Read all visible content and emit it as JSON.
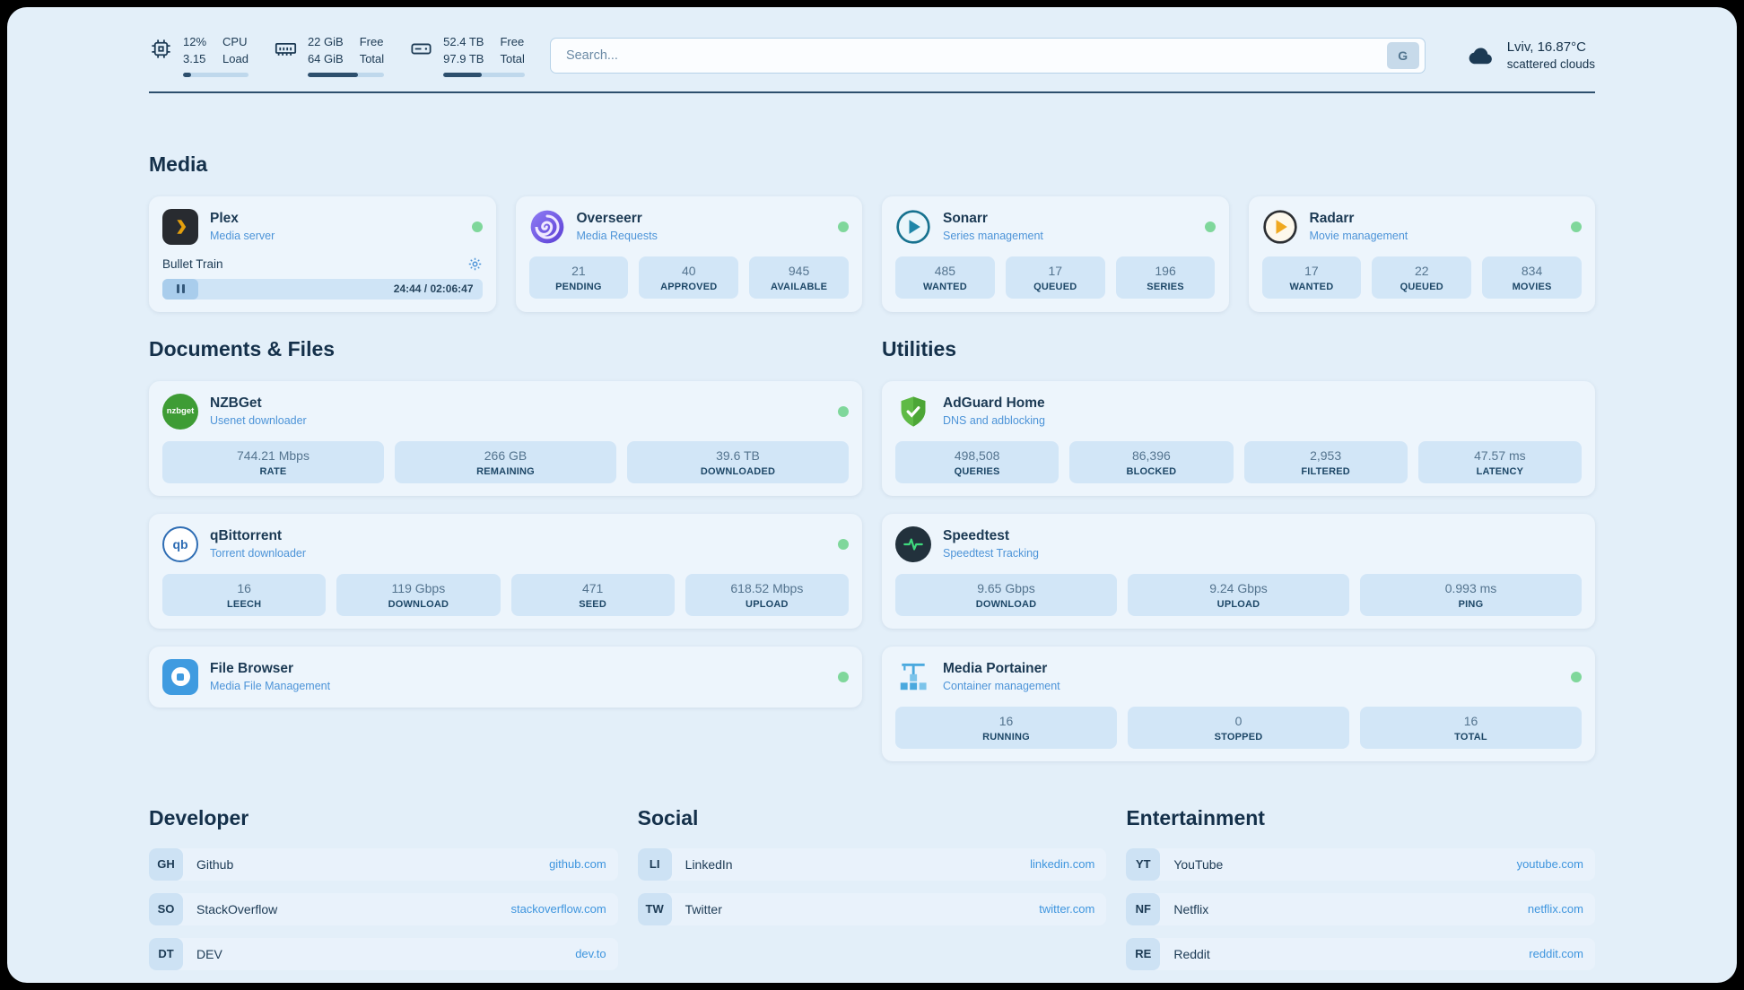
{
  "icons": {
    "search_engine": "G"
  },
  "header": {
    "cpu": {
      "value_top": "12%",
      "value_bottom": "3.15",
      "label_top": "CPU",
      "label_bottom": "Load",
      "progress_pct": 12
    },
    "ram": {
      "value_top": "22 GiB",
      "value_bottom": "64 GiB",
      "label_top": "Free",
      "label_bottom": "Total",
      "progress_pct": 66
    },
    "disk": {
      "value_top": "52.4 TB",
      "value_bottom": "97.9 TB",
      "label_top": "Free",
      "label_bottom": "Total",
      "progress_pct": 47
    },
    "search": {
      "placeholder": "Search..."
    },
    "weather": {
      "location": "Lviv, 16.87°C",
      "condition": "scattered clouds"
    }
  },
  "media": {
    "title": "Media",
    "plex": {
      "name": "Plex",
      "subtitle": "Media server",
      "now_playing": "Bullet Train",
      "time": "24:44 / 02:06:47"
    },
    "cards": [
      {
        "name": "Overseerr",
        "subtitle": "Media Requests",
        "stats": [
          {
            "value": "21",
            "label": "PENDING"
          },
          {
            "value": "40",
            "label": "APPROVED"
          },
          {
            "value": "945",
            "label": "AVAILABLE"
          }
        ]
      },
      {
        "name": "Sonarr",
        "subtitle": "Series management",
        "stats": [
          {
            "value": "485",
            "label": "WANTED"
          },
          {
            "value": "17",
            "label": "QUEUED"
          },
          {
            "value": "196",
            "label": "SERIES"
          }
        ]
      },
      {
        "name": "Radarr",
        "subtitle": "Movie management",
        "stats": [
          {
            "value": "17",
            "label": "WANTED"
          },
          {
            "value": "22",
            "label": "QUEUED"
          },
          {
            "value": "834",
            "label": "MOVIES"
          }
        ]
      }
    ]
  },
  "documents": {
    "title": "Documents & Files",
    "cards": [
      {
        "name": "NZBGet",
        "subtitle": "Usenet downloader",
        "icon_text": "nzbget",
        "stats": [
          {
            "value": "744.21 Mbps",
            "label": "RATE"
          },
          {
            "value": "266 GB",
            "label": "REMAINING"
          },
          {
            "value": "39.6 TB",
            "label": "DOWNLOADED"
          }
        ]
      },
      {
        "name": "qBittorrent",
        "subtitle": "Torrent downloader",
        "icon_text": "qb",
        "stats": [
          {
            "value": "16",
            "label": "LEECH"
          },
          {
            "value": "119 Gbps",
            "label": "DOWNLOAD"
          },
          {
            "value": "471",
            "label": "SEED"
          },
          {
            "value": "618.52 Mbps",
            "label": "UPLOAD"
          }
        ]
      },
      {
        "name": "File Browser",
        "subtitle": "Media File Management",
        "stats": []
      }
    ]
  },
  "utilities": {
    "title": "Utilities",
    "cards": [
      {
        "name": "AdGuard Home",
        "subtitle": "DNS and adblocking",
        "stats": [
          {
            "value": "498,508",
            "label": "QUERIES"
          },
          {
            "value": "86,396",
            "label": "BLOCKED"
          },
          {
            "value": "2,953",
            "label": "FILTERED"
          },
          {
            "value": "47.57 ms",
            "label": "LATENCY"
          }
        ]
      },
      {
        "name": "Speedtest",
        "subtitle": "Speedtest Tracking",
        "stats": [
          {
            "value": "9.65 Gbps",
            "label": "DOWNLOAD"
          },
          {
            "value": "9.24 Gbps",
            "label": "UPLOAD"
          },
          {
            "value": "0.993 ms",
            "label": "PING"
          }
        ]
      },
      {
        "name": "Media Portainer",
        "subtitle": "Container management",
        "stats": [
          {
            "value": "16",
            "label": "RUNNING"
          },
          {
            "value": "0",
            "label": "STOPPED"
          },
          {
            "value": "16",
            "label": "TOTAL"
          }
        ]
      }
    ]
  },
  "bookmarks": [
    {
      "title": "Developer",
      "links": [
        {
          "abbr": "GH",
          "name": "Github",
          "url": "github.com"
        },
        {
          "abbr": "SO",
          "name": "StackOverflow",
          "url": "stackoverflow.com"
        },
        {
          "abbr": "DT",
          "name": "DEV",
          "url": "dev.to"
        }
      ]
    },
    {
      "title": "Social",
      "links": [
        {
          "abbr": "LI",
          "name": "LinkedIn",
          "url": "linkedin.com"
        },
        {
          "abbr": "TW",
          "name": "Twitter",
          "url": "twitter.com"
        }
      ]
    },
    {
      "title": "Entertainment",
      "links": [
        {
          "abbr": "YT",
          "name": "YouTube",
          "url": "youtube.com"
        },
        {
          "abbr": "NF",
          "name": "Netflix",
          "url": "netflix.com"
        },
        {
          "abbr": "RE",
          "name": "Reddit",
          "url": "reddit.com"
        }
      ]
    }
  ]
}
